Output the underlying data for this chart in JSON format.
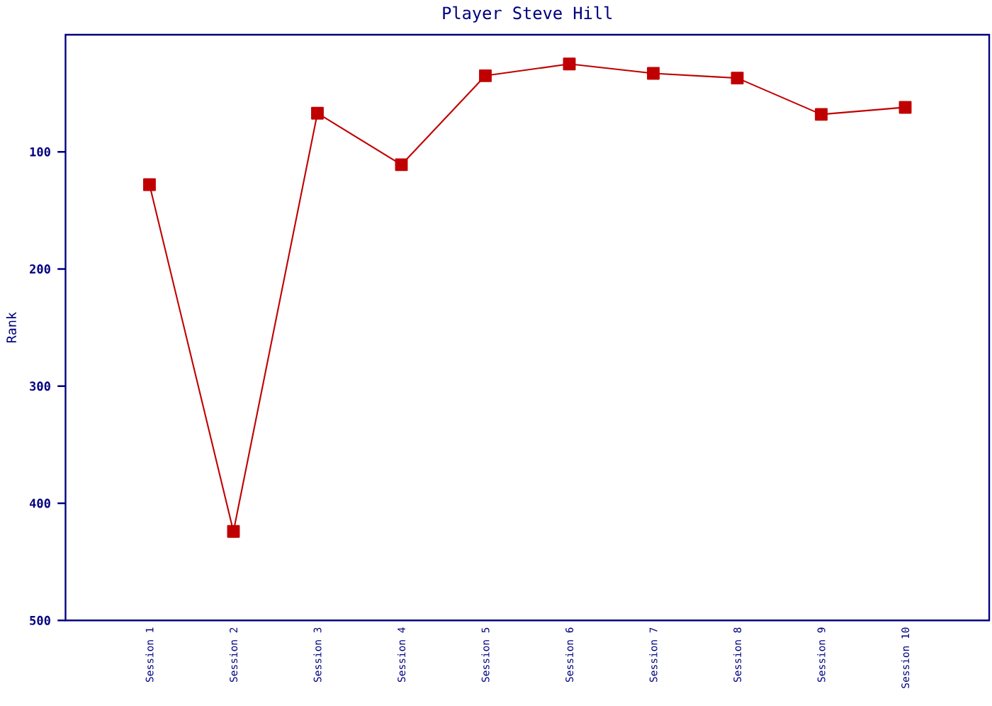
{
  "chart_data": {
    "type": "line",
    "title": "Player Steve Hill",
    "ylabel": "Rank",
    "categories": [
      "Session 1",
      "Session 2",
      "Session 3",
      "Session 4",
      "Session 5",
      "Session 6",
      "Session 7",
      "Session 8",
      "Session 9",
      "Session 10"
    ],
    "values": [
      128,
      424,
      67,
      111,
      35,
      25,
      33,
      37,
      68,
      62
    ],
    "color": "#c00000",
    "marker": "square",
    "line_style": "solid",
    "ylim": [
      500,
      0
    ],
    "yticks": [
      100,
      200,
      300,
      400,
      500
    ]
  }
}
